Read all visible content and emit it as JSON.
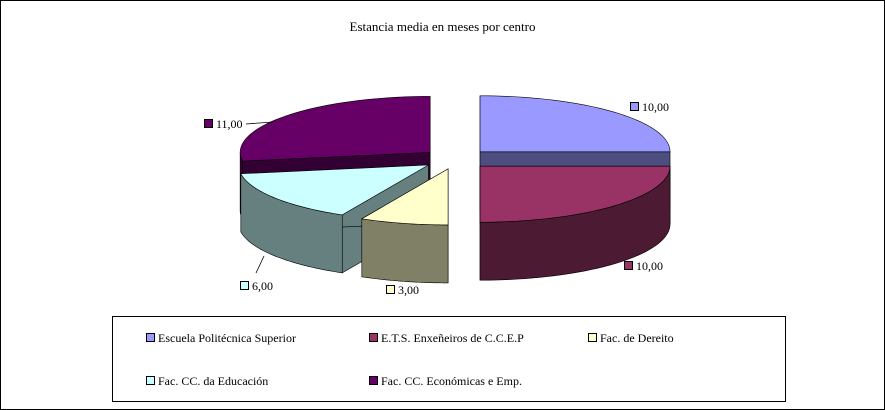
{
  "chart_data": {
    "type": "pie",
    "title": "Estancia media en meses por centro",
    "style": "3d-exploded",
    "categories": [
      "Escuela Politécnica Superior",
      "E.T.S. Enxeñeiros de C.C.E.P",
      "Fac. de Dereito",
      "Fac. CC. da Educación",
      "Fac. CC. Económicas e Emp."
    ],
    "values": [
      10,
      10,
      3,
      6,
      11
    ],
    "data_labels": [
      "10,00",
      "10,00",
      "3,00",
      "6,00",
      "11,00"
    ],
    "colors": [
      "#9999ff",
      "#993366",
      "#ffffcc",
      "#ccffff",
      "#660066"
    ],
    "side_colors": [
      "#4d4d80",
      "#4d1a33",
      "#808066",
      "#668080",
      "#330033"
    ],
    "legend_position": "bottom"
  }
}
